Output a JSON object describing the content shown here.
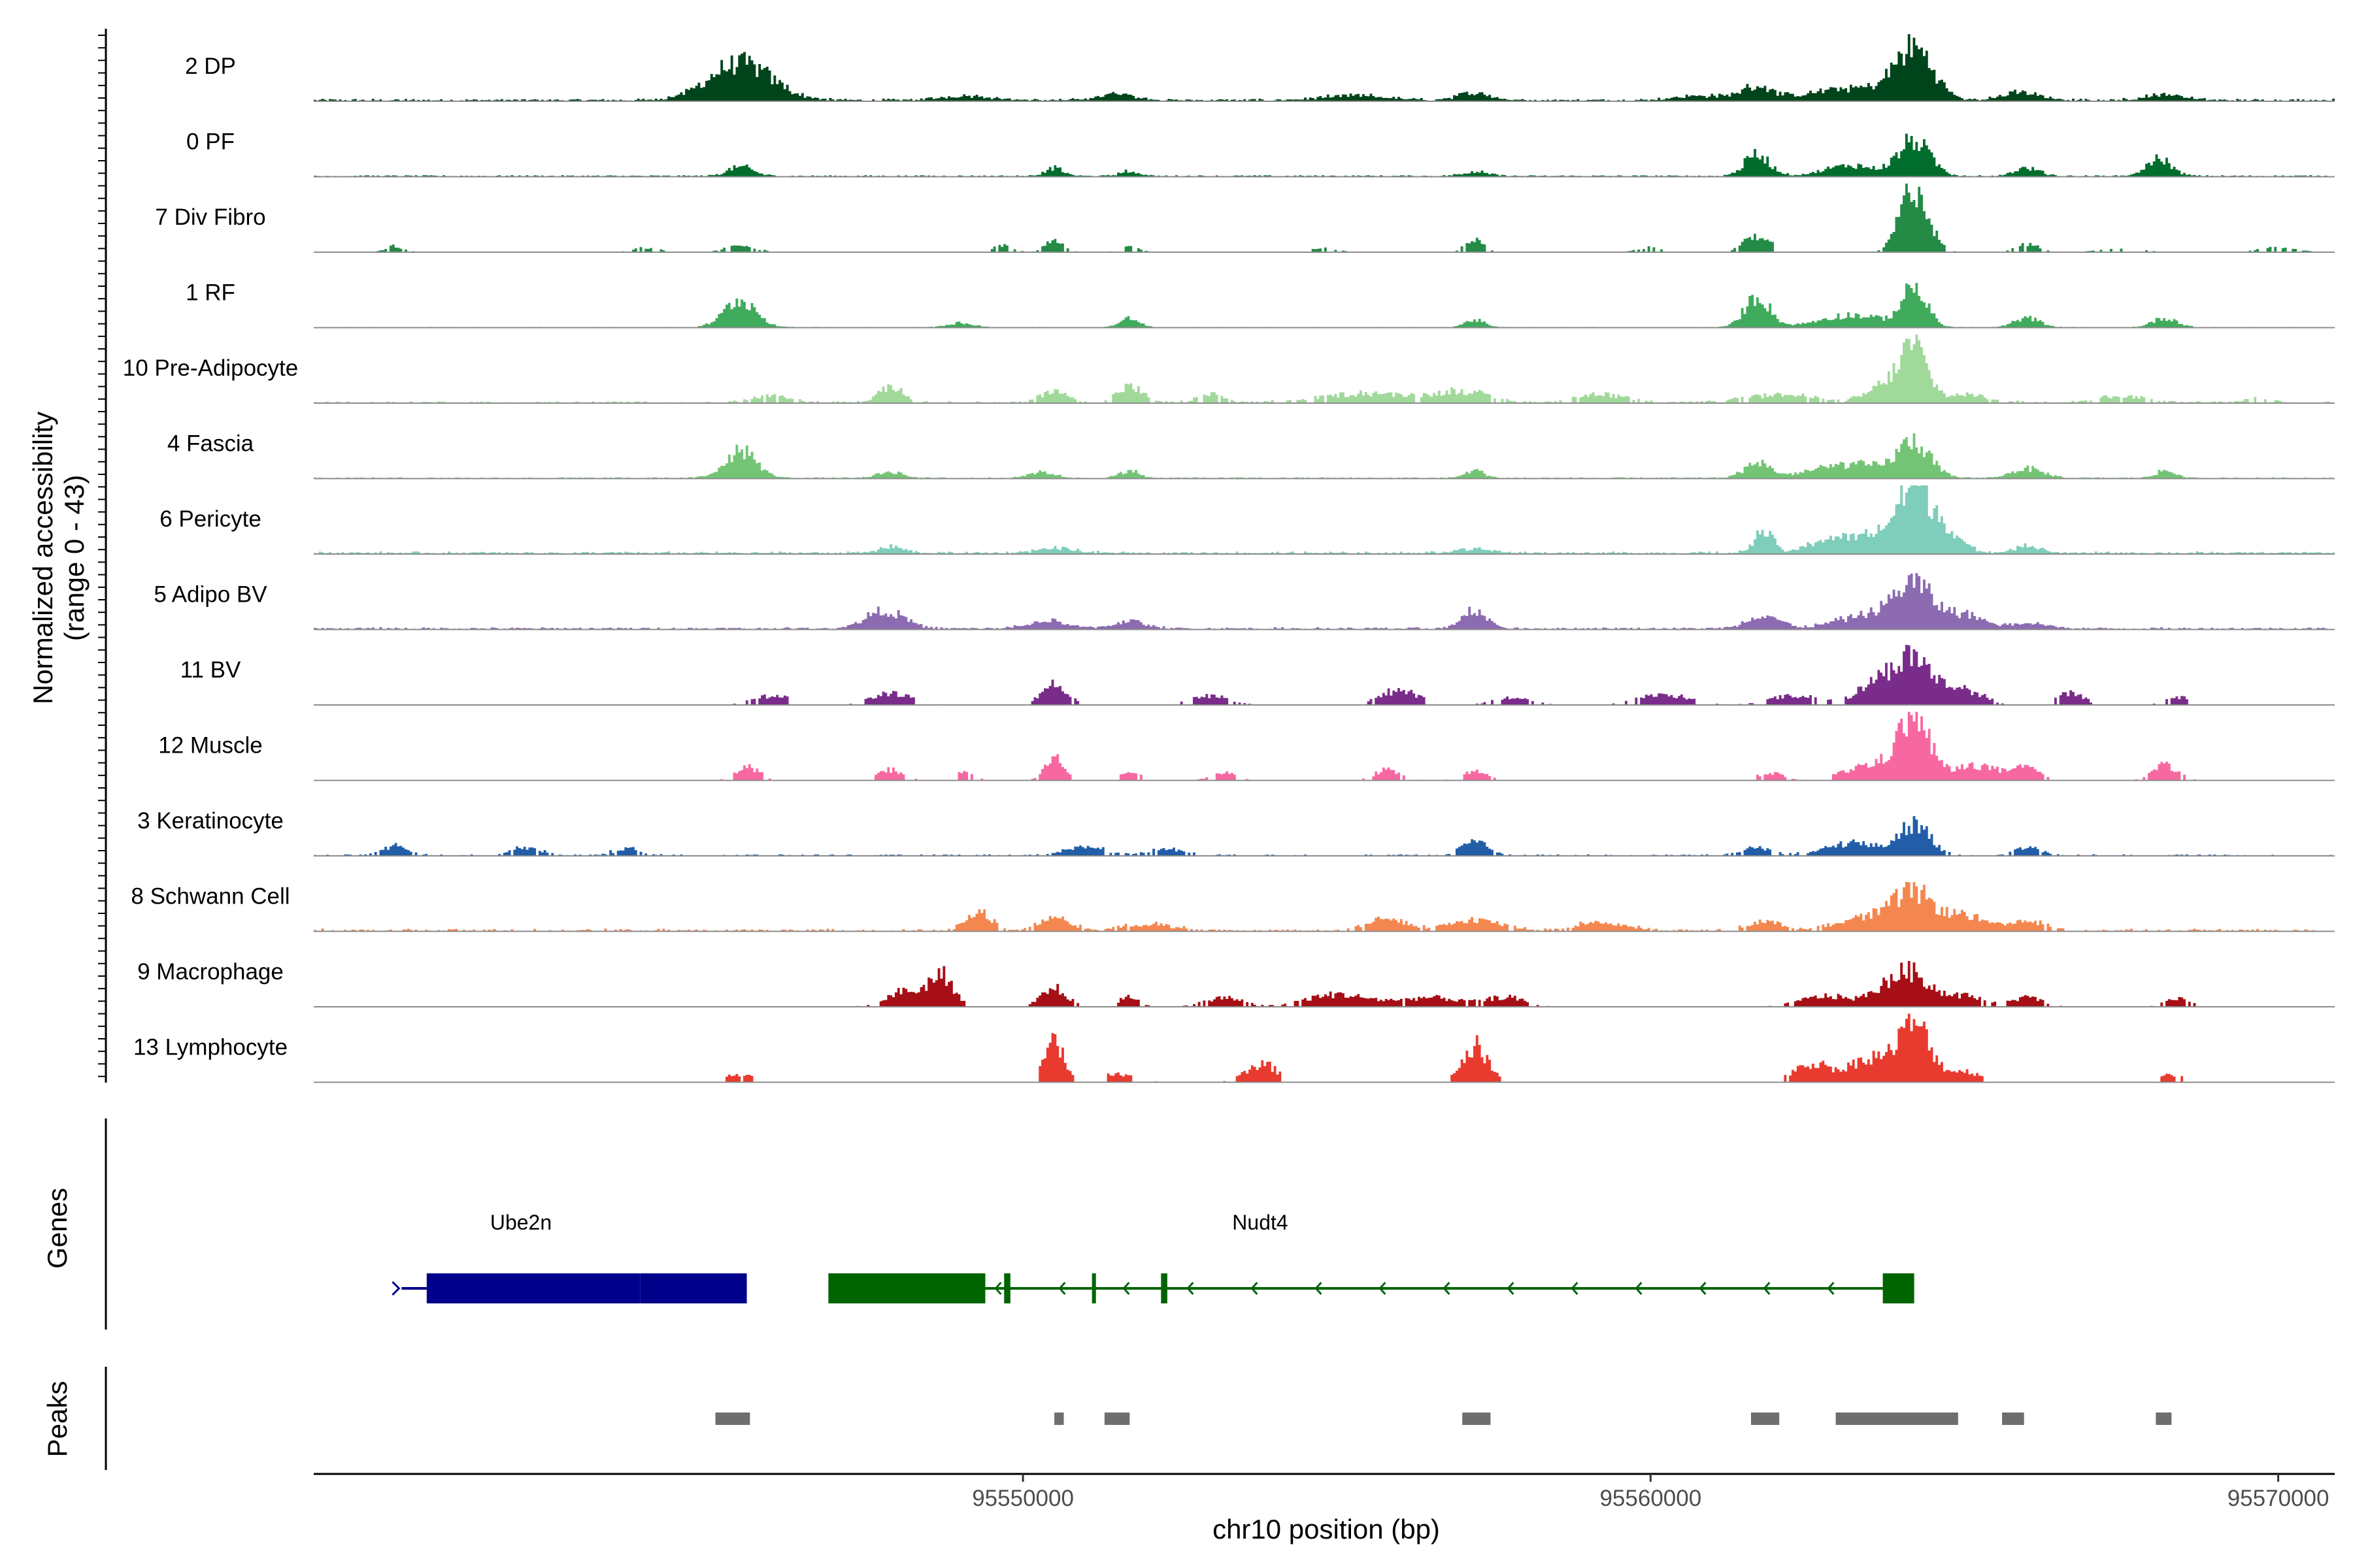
{
  "chart_data": {
    "type": "area",
    "chromosome": "chr10",
    "xlim": [
      95538700,
      95570900
    ],
    "xlabel": "chr10 position (bp)",
    "xticks": [
      95550000,
      95560000,
      95570000
    ],
    "xtick_labels": [
      "95550000",
      "95560000",
      "95570000"
    ],
    "ylabel_line1": "Normalized accessibility",
    "ylabel_line2": "(range 0 - 43)",
    "ylim": [
      0,
      43
    ],
    "tracks": [
      {
        "name": "2 DP",
        "color": "#00441b",
        "base": 0.9,
        "peaks": [
          [
            95545500,
            24,
            500
          ],
          [
            95549100,
            3,
            400
          ],
          [
            95551500,
            4,
            300
          ],
          [
            95555300,
            3,
            500
          ],
          [
            95557200,
            5,
            250
          ],
          [
            95560800,
            3,
            400
          ],
          [
            95561700,
            9,
            250
          ],
          [
            95563200,
            8,
            600
          ],
          [
            95564200,
            33,
            300
          ],
          [
            95565900,
            5,
            300
          ],
          [
            95568200,
            4,
            300
          ]
        ]
      },
      {
        "name": "0 PF",
        "color": "#006d2c",
        "base": 0.6,
        "peaks": [
          [
            95545500,
            6,
            200
          ],
          [
            95550500,
            5,
            150
          ],
          [
            95551700,
            3,
            150
          ],
          [
            95557200,
            3,
            200
          ],
          [
            95561700,
            14,
            200
          ],
          [
            95563200,
            7,
            400
          ],
          [
            95564200,
            23,
            250
          ],
          [
            95566000,
            5,
            200
          ],
          [
            95568100,
            11,
            200
          ]
        ]
      },
      {
        "name": "7 Div Fibro",
        "color": "#238b45",
        "base": 0,
        "sparse": 0.35,
        "peaks": [
          [
            95540000,
            4,
            150
          ],
          [
            95544000,
            3,
            200
          ],
          [
            95545500,
            4,
            250
          ],
          [
            95549700,
            5,
            150
          ],
          [
            95550500,
            7,
            150
          ],
          [
            95551700,
            4,
            150
          ],
          [
            95554800,
            3,
            200
          ],
          [
            95557200,
            8,
            150
          ],
          [
            95560000,
            3,
            200
          ],
          [
            95561700,
            11,
            200
          ],
          [
            95564200,
            43,
            220
          ],
          [
            95566000,
            5,
            200
          ],
          [
            95567500,
            3,
            300
          ],
          [
            95570000,
            3,
            300
          ]
        ]
      },
      {
        "name": "1 RF",
        "color": "#41ab5d",
        "base": 0.3,
        "peaks": [
          [
            95545500,
            18,
            250
          ],
          [
            95549000,
            3,
            200
          ],
          [
            95551700,
            6,
            150
          ],
          [
            95557200,
            5,
            150
          ],
          [
            95561700,
            20,
            200
          ],
          [
            95563200,
            8,
            500
          ],
          [
            95564200,
            25,
            200
          ],
          [
            95566000,
            6,
            200
          ],
          [
            95568200,
            6,
            200
          ]
        ]
      },
      {
        "name": "10 Pre-Adipocyte",
        "color": "#a1d99b",
        "base": 0.7,
        "sparse": 0.15,
        "peaks": [
          [
            95546000,
            4,
            300
          ],
          [
            95547900,
            10,
            200
          ],
          [
            95550500,
            8,
            200
          ],
          [
            95551700,
            10,
            200
          ],
          [
            95553000,
            5,
            200
          ],
          [
            95555500,
            6,
            700
          ],
          [
            95557000,
            7,
            400
          ],
          [
            95559200,
            5,
            400
          ],
          [
            95562000,
            5,
            600
          ],
          [
            95563800,
            12,
            300
          ],
          [
            95564200,
            33,
            200
          ],
          [
            95565000,
            5,
            400
          ],
          [
            95567500,
            4,
            400
          ],
          [
            95569700,
            3,
            200
          ]
        ]
      },
      {
        "name": "4 Fascia",
        "color": "#74c476",
        "base": 0.5,
        "peaks": [
          [
            95545500,
            18,
            250
          ],
          [
            95547900,
            4,
            200
          ],
          [
            95550300,
            4,
            200
          ],
          [
            95551700,
            5,
            150
          ],
          [
            95557200,
            5,
            150
          ],
          [
            95561700,
            10,
            200
          ],
          [
            95563200,
            9,
            600
          ],
          [
            95564200,
            22,
            250
          ],
          [
            95566000,
            6,
            250
          ],
          [
            95568200,
            5,
            150
          ]
        ]
      },
      {
        "name": "6 Pericyte",
        "color": "#7fcdbb",
        "base": 0.9,
        "peaks": [
          [
            95547900,
            4,
            200
          ],
          [
            95550500,
            3,
            300
          ],
          [
            95557200,
            3,
            300
          ],
          [
            95561800,
            14,
            150
          ],
          [
            95562800,
            8,
            300
          ],
          [
            95563600,
            12,
            400
          ],
          [
            95564200,
            40,
            250
          ],
          [
            95564700,
            14,
            250
          ],
          [
            95566000,
            5,
            200
          ]
        ]
      },
      {
        "name": "5 Adipo BV",
        "color": "#8c6bb1",
        "base": 0.8,
        "peaks": [
          [
            95547800,
            12,
            300
          ],
          [
            95550400,
            5,
            300
          ],
          [
            95551700,
            5,
            250
          ],
          [
            95557200,
            12,
            200
          ],
          [
            95561800,
            9,
            250
          ],
          [
            95563500,
            9,
            500
          ],
          [
            95564200,
            27,
            300
          ],
          [
            95565000,
            9,
            300
          ],
          [
            95566000,
            4,
            300
          ]
        ]
      },
      {
        "name": "11 BV",
        "color": "#7a2c8a",
        "base": 0,
        "sparse": 0.55,
        "peaks": [
          [
            95546000,
            6,
            300
          ],
          [
            95547900,
            8,
            300
          ],
          [
            95550500,
            14,
            200
          ],
          [
            95553000,
            6,
            300
          ],
          [
            95556000,
            10,
            300
          ],
          [
            95557800,
            5,
            300
          ],
          [
            95560200,
            7,
            400
          ],
          [
            95562300,
            6,
            400
          ],
          [
            95563600,
            14,
            300
          ],
          [
            95564200,
            30,
            300
          ],
          [
            95565000,
            10,
            300
          ],
          [
            95566700,
            8,
            200
          ],
          [
            95568400,
            5,
            200
          ]
        ]
      },
      {
        "name": "12 Muscle",
        "color": "#f768a1",
        "base": 0,
        "sparse": 0.55,
        "peaks": [
          [
            95545600,
            9,
            200
          ],
          [
            95547900,
            7,
            200
          ],
          [
            95549000,
            5,
            200
          ],
          [
            95550500,
            15,
            150
          ],
          [
            95551700,
            6,
            150
          ],
          [
            95553200,
            5,
            200
          ],
          [
            95555800,
            7,
            200
          ],
          [
            95557200,
            6,
            200
          ],
          [
            95561900,
            5,
            200
          ],
          [
            95563500,
            10,
            400
          ],
          [
            95564200,
            40,
            250
          ],
          [
            95565200,
            10,
            350
          ],
          [
            95566000,
            8,
            200
          ],
          [
            95568200,
            10,
            200
          ]
        ]
      },
      {
        "name": "3 Keratinocyte",
        "color": "#225ea8",
        "base": 0.6,
        "sparse": 0.2,
        "peaks": [
          [
            95540000,
            6,
            200
          ],
          [
            95542100,
            5,
            250
          ],
          [
            95543700,
            5,
            200
          ],
          [
            95551000,
            6,
            300
          ],
          [
            95552300,
            4,
            300
          ],
          [
            95557200,
            10,
            200
          ],
          [
            95561700,
            5,
            250
          ],
          [
            95563200,
            8,
            400
          ],
          [
            95564200,
            20,
            250
          ],
          [
            95566000,
            5,
            200
          ]
        ]
      },
      {
        "name": "8 Schwann Cell",
        "color": "#f4874f",
        "base": 0.9,
        "sparse": 0.1,
        "peaks": [
          [
            95549300,
            12,
            200
          ],
          [
            95550500,
            8,
            250
          ],
          [
            95552000,
            4,
            400
          ],
          [
            95555800,
            8,
            300
          ],
          [
            95557200,
            7,
            400
          ],
          [
            95559200,
            5,
            400
          ],
          [
            95561800,
            6,
            250
          ],
          [
            95563500,
            9,
            500
          ],
          [
            95564200,
            22,
            300
          ],
          [
            95565000,
            10,
            300
          ],
          [
            95566000,
            6,
            300
          ]
        ]
      },
      {
        "name": "9 Macrophage",
        "color": "#a50f15",
        "base": 0,
        "sparse": 0.4,
        "peaks": [
          [
            95548100,
            10,
            300
          ],
          [
            95548700,
            20,
            200
          ],
          [
            95550500,
            12,
            200
          ],
          [
            95551700,
            7,
            150
          ],
          [
            95553200,
            6,
            300
          ],
          [
            95555000,
            8,
            500
          ],
          [
            95556500,
            6,
            500
          ],
          [
            95557700,
            6,
            300
          ],
          [
            95562800,
            7,
            400
          ],
          [
            95563800,
            10,
            300
          ],
          [
            95564200,
            18,
            300
          ],
          [
            95565000,
            7,
            300
          ],
          [
            95566000,
            6,
            250
          ],
          [
            95568400,
            5,
            200
          ]
        ]
      },
      {
        "name": "13 Lymphocyte",
        "color": "#e83a2f",
        "base": 0,
        "sparse": 0.7,
        "peaks": [
          [
            95545500,
            5,
            250
          ],
          [
            95550500,
            26,
            150
          ],
          [
            95551500,
            5,
            300
          ],
          [
            95553800,
            12,
            250
          ],
          [
            95557200,
            24,
            200
          ],
          [
            95562600,
            12,
            300
          ],
          [
            95563500,
            16,
            300
          ],
          [
            95564200,
            38,
            250
          ],
          [
            95565000,
            7,
            300
          ],
          [
            95568300,
            5,
            200
          ]
        ]
      }
    ],
    "genes": {
      "label": "Genes",
      "items": [
        {
          "name": "Ube2n",
          "strand": "+",
          "color": "#00008b",
          "start": 95540100,
          "end": 95545600,
          "exons": [
            [
              95540500,
              95543900
            ],
            [
              95543900,
              95545600
            ]
          ]
        },
        {
          "name": "Nudt4",
          "strand": "-",
          "color": "#006400",
          "start": 95546900,
          "end": 95564200,
          "exons": [
            [
              95546900,
              95549400
            ],
            [
              95549700,
              95549800
            ],
            [
              95551100,
              95551150
            ],
            [
              95552200,
              95552300
            ],
            [
              95563700,
              95564200
            ]
          ]
        }
      ]
    },
    "peaks_track": {
      "label": "Peaks",
      "color": "#6e6e6e",
      "regions": [
        [
          95545100,
          95545650
        ],
        [
          95550500,
          95550650
        ],
        [
          95551300,
          95551700
        ],
        [
          95557000,
          95557450
        ],
        [
          95561600,
          95562050
        ],
        [
          95562950,
          95564900
        ],
        [
          95565600,
          95565950
        ],
        [
          95568050,
          95568300
        ]
      ]
    }
  }
}
